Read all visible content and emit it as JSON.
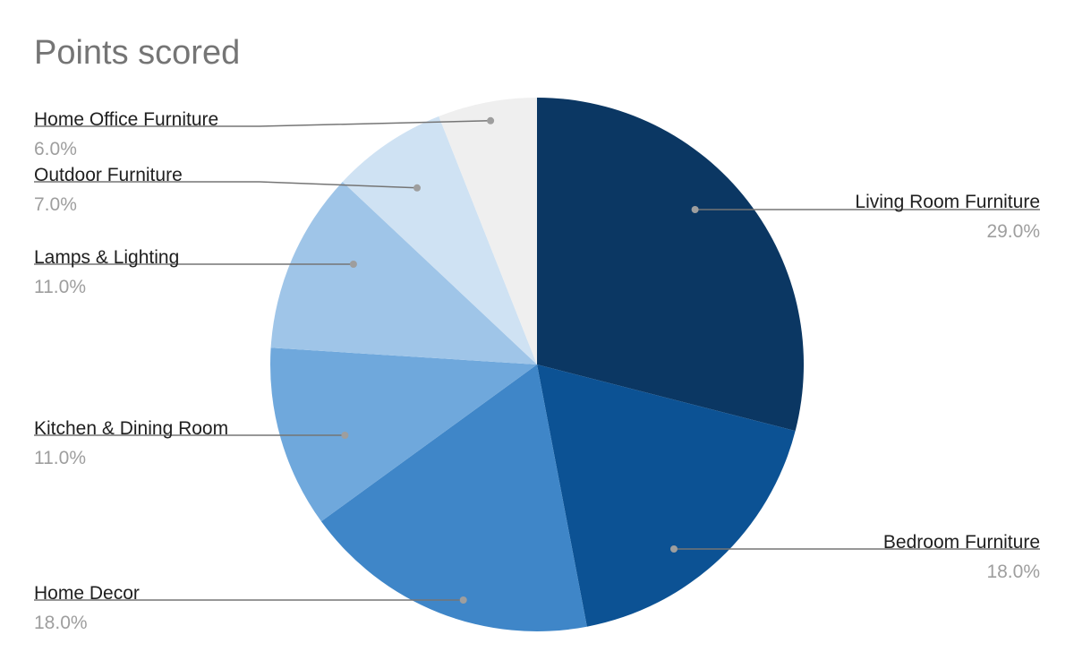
{
  "chart_data": {
    "type": "pie",
    "title": "Points scored",
    "start_angle_deg": 0,
    "direction": "clockwise",
    "slices": [
      {
        "label": "Living Room Furniture",
        "value": 29.0,
        "percent_label": "29.0%",
        "color": "#0b3763",
        "side": "right"
      },
      {
        "label": "Bedroom Furniture",
        "value": 18.0,
        "percent_label": "18.0%",
        "color": "#0c5294",
        "side": "right"
      },
      {
        "label": "Home Decor",
        "value": 18.0,
        "percent_label": "18.0%",
        "color": "#3f86c8",
        "side": "left"
      },
      {
        "label": "Kitchen & Dining Room",
        "value": 11.0,
        "percent_label": "11.0%",
        "color": "#6fa8dc",
        "side": "left"
      },
      {
        "label": "Lamps & Lighting",
        "value": 11.0,
        "percent_label": "11.0%",
        "color": "#9fc5e8",
        "side": "left"
      },
      {
        "label": "Outdoor Furniture",
        "value": 7.0,
        "percent_label": "7.0%",
        "color": "#cfe2f3",
        "side": "left"
      },
      {
        "label": "Home Office Furniture",
        "value": 6.0,
        "percent_label": "6.0%",
        "color": "#efefef",
        "side": "left"
      }
    ]
  }
}
